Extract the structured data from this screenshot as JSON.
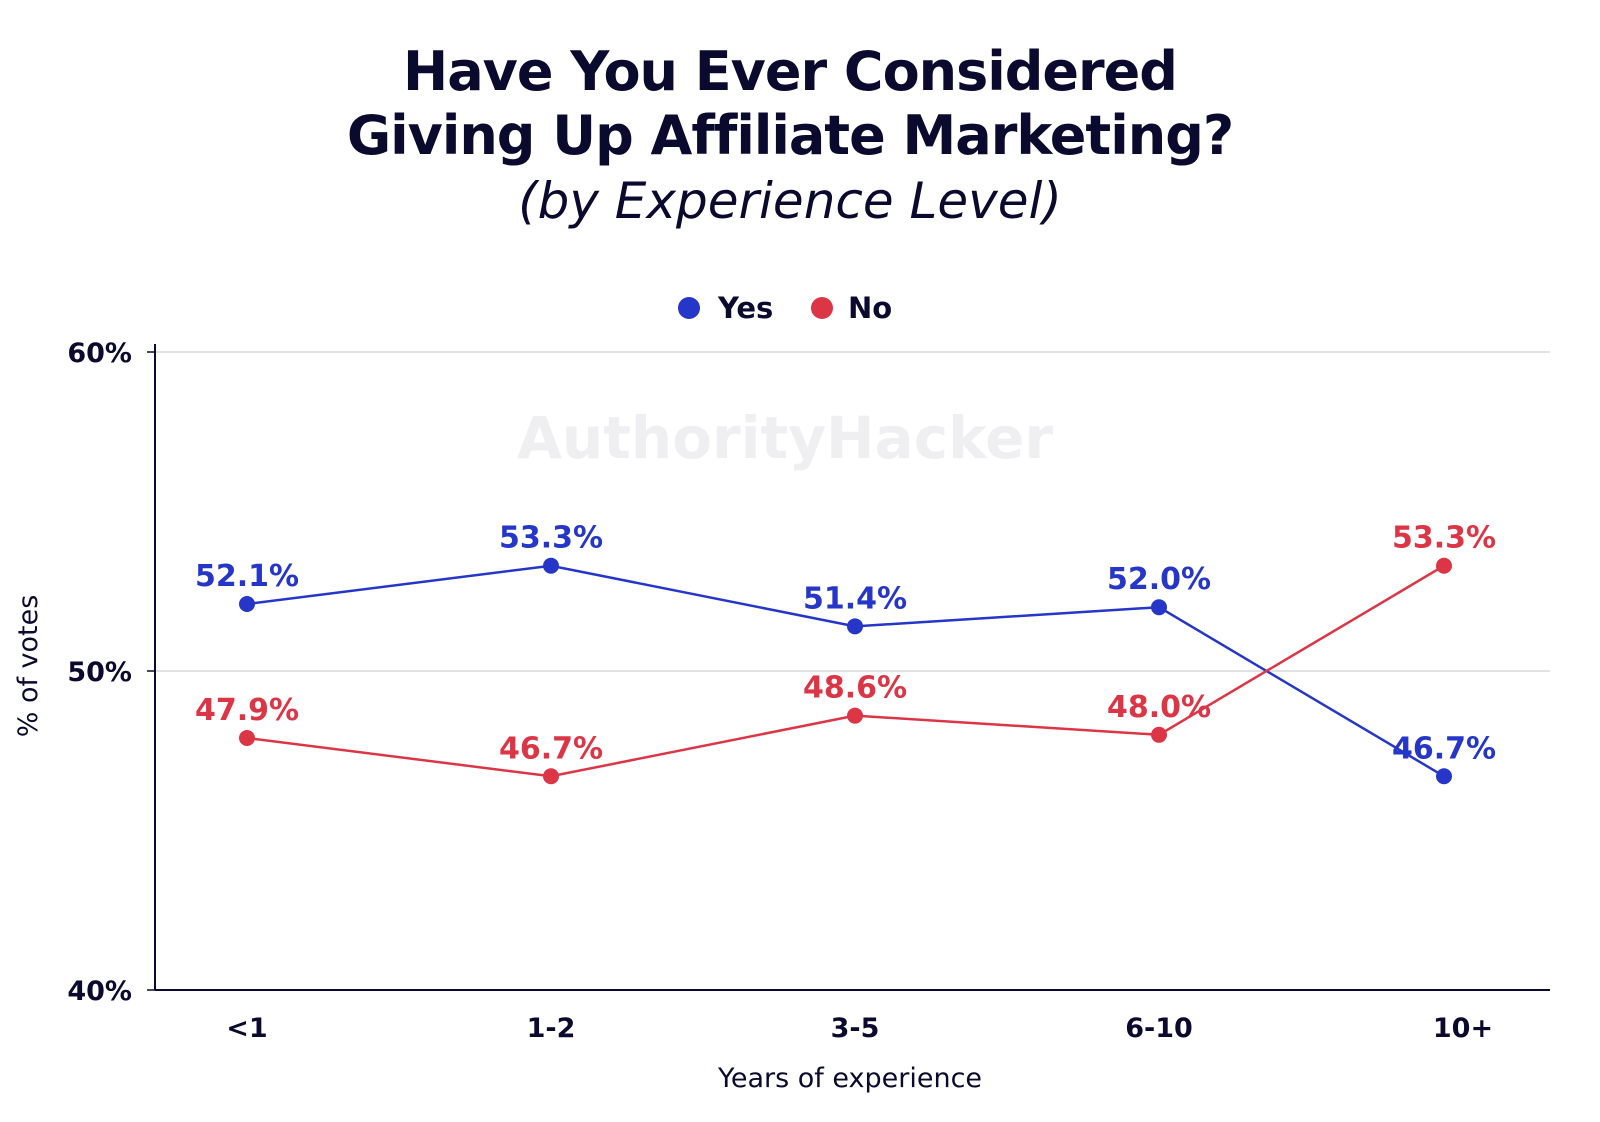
{
  "chart_data": {
    "type": "line",
    "title": "Have You Ever Considered Giving Up Affiliate Marketing?",
    "title_line1": "Have You Ever Considered",
    "title_line2": "Giving Up Affiliate Marketing?",
    "subtitle": "(by Experience Level)",
    "watermark": "AuthorityHacker",
    "xlabel": "Years of experience",
    "ylabel": "% of votes",
    "categories": [
      "<1",
      "1-2",
      "3-5",
      "6-10",
      "10+"
    ],
    "ylim": [
      40,
      60
    ],
    "yticks": [
      40,
      50,
      60
    ],
    "ytick_labels": [
      "40%",
      "50%",
      "60%"
    ],
    "grid": true,
    "legend_position": "top-center",
    "series": [
      {
        "name": "Yes",
        "color": "#2536c8",
        "values": [
          52.1,
          53.3,
          51.4,
          52.0,
          46.7
        ],
        "labels": [
          "52.1%",
          "53.3%",
          "51.4%",
          "52.0%",
          "46.7%"
        ]
      },
      {
        "name": "No",
        "color": "#dc3545",
        "values": [
          47.9,
          46.7,
          48.6,
          48.0,
          53.3
        ],
        "labels": [
          "47.9%",
          "46.7%",
          "48.6%",
          "48.0%",
          "53.3%"
        ]
      }
    ]
  }
}
